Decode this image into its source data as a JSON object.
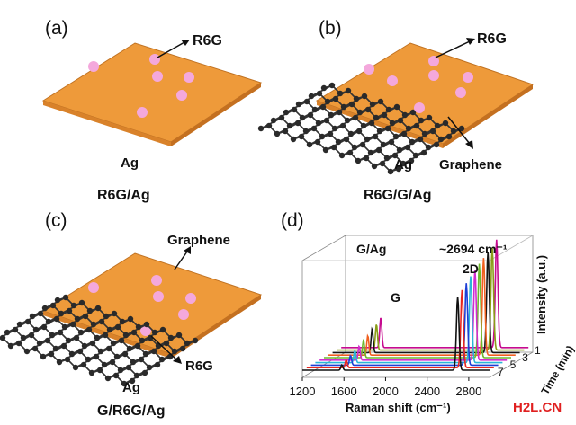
{
  "panels": {
    "a": {
      "tag": "(a)",
      "molecule_label": "R6G",
      "substrate_label": "Ag",
      "caption": "R6G/Ag"
    },
    "b": {
      "tag": "(b)",
      "molecule_label": "R6G",
      "substrate_label": "Ag",
      "layer_label": "Graphene",
      "caption": "R6G/G/Ag"
    },
    "c": {
      "tag": "(c)",
      "layer_label": "Graphene",
      "molecule_label": "R6G",
      "substrate_label": "Ag",
      "caption": "G/R6G/Ag"
    },
    "d": {
      "tag": "(d)",
      "sample_label": "G/Ag",
      "peak_g_label": "G",
      "peak_2d_label": "2D",
      "peak_position_label": "~2694 cm⁻¹",
      "xlabel": "Raman shift (cm⁻¹)",
      "ylabel": "Intensity (a.u.)",
      "zlabel": "Time (min)",
      "x_ticks": [
        "1200",
        "1600",
        "2000",
        "2400",
        "2800"
      ],
      "time_ticks": [
        "1",
        "3",
        "5",
        "7"
      ]
    }
  },
  "watermark": "H2L.CN",
  "colors": {
    "silver_substrate": "#ee9a3a",
    "substrate_edge": "#c07222",
    "r6g_molecule": "#f4a8dc",
    "graphene_atom": "#2a2a2a",
    "spectra": [
      "#111111",
      "#e8271e",
      "#1e3fd6",
      "#2bb5d8",
      "#d22bd0",
      "#6db82d",
      "#f06020",
      "#151515",
      "#8a9c17",
      "#c60b8f"
    ]
  },
  "chart_data": {
    "type": "line",
    "title": "G/Ag",
    "xlabel": "Raman shift (cm⁻¹)",
    "ylabel": "Intensity (a.u.)",
    "zlabel": "Time (min)",
    "xlim": [
      1200,
      3000
    ],
    "x_ticks": [
      1200,
      1600,
      2000,
      2400,
      2800
    ],
    "time_ticks": [
      1,
      3,
      5,
      7
    ],
    "peaks": [
      {
        "name": "G",
        "position": 1580
      },
      {
        "name": "2D",
        "position": 2694
      }
    ],
    "series_count": 10,
    "g_peak_heights": [
      0.28,
      0.24,
      0.22,
      0.18,
      0.16,
      0.13,
      0.11,
      0.09,
      0.07,
      0.05
    ],
    "twod_peak_heights": [
      1.0,
      0.95,
      0.93,
      0.9,
      0.87,
      0.84,
      0.8,
      0.76,
      0.72,
      0.68
    ]
  }
}
